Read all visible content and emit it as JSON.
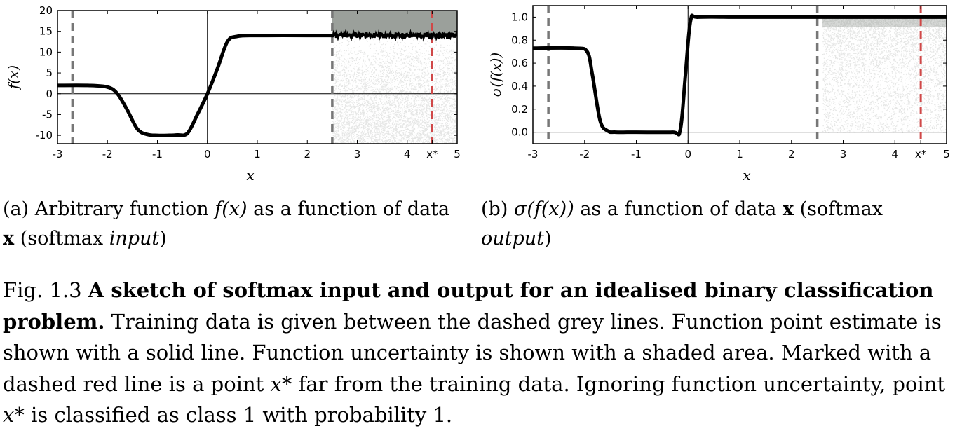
{
  "chart_data": [
    {
      "type": "line",
      "panel": "a",
      "xlabel": "x",
      "ylabel": "f(x)",
      "xlim": [
        -3,
        5
      ],
      "ylim": [
        -12,
        20
      ],
      "x_ticks": [
        "-3",
        "-2",
        "-1",
        "0",
        "1",
        "2",
        "3",
        "4",
        "x*",
        "5"
      ],
      "x_tick_values": [
        -3,
        -2,
        -1,
        0,
        1,
        2,
        3,
        4,
        4.5,
        5
      ],
      "y_ticks": [
        -10,
        -5,
        0,
        5,
        10,
        15,
        20
      ],
      "series": [
        {
          "x": [
            -3,
            -2.4,
            -2.0,
            -1.8,
            -1.6,
            -1.4,
            -1.2,
            -1.0,
            -0.8,
            -0.6,
            -0.4,
            -0.2,
            0,
            0.2,
            0.4,
            0.6,
            1.0,
            2.0,
            2.5
          ],
          "y": [
            2,
            2,
            1.6,
            0,
            -4,
            -8.5,
            -9.8,
            -10,
            -10,
            -9.9,
            -9.5,
            -5,
            0,
            6,
            12.5,
            13.8,
            14,
            14,
            14
          ]
        },
        {
          "x": [
            2.5,
            5.0
          ],
          "y": [
            14,
            14
          ]
        }
      ],
      "uncertainty_band": {
        "x": [
          2.5,
          5.0
        ],
        "y": [
          -12,
          20
        ]
      },
      "training_data_bounds": [
        -2.7,
        2.5
      ],
      "x_star": 4.5
    },
    {
      "type": "line",
      "panel": "b",
      "xlabel": "x",
      "ylabel": "σ(f(x))",
      "xlim": [
        -3,
        5
      ],
      "ylim": [
        -0.1,
        1.1
      ],
      "x_ticks": [
        "-3",
        "-2",
        "-1",
        "0",
        "1",
        "2",
        "3",
        "4",
        "x*",
        "5"
      ],
      "x_tick_values": [
        -3,
        -2,
        -1,
        0,
        1,
        2,
        3,
        4,
        4.5,
        5
      ],
      "y_ticks": [
        "0.0",
        "0.2",
        "0.4",
        "0.6",
        "0.8",
        "1.0"
      ],
      "y_tick_values": [
        0,
        0.2,
        0.4,
        0.6,
        0.8,
        1.0
      ],
      "series": [
        {
          "x": [
            -3,
            -2.2,
            -1.95,
            -1.85,
            -1.7,
            -1.55,
            -1.4,
            -1.0,
            -0.3,
            -0.15,
            -0.05,
            0.05,
            0.2,
            1.0,
            2.0,
            2.5,
            5.0
          ],
          "y": [
            0.73,
            0.73,
            0.7,
            0.5,
            0.1,
            0.01,
            0.0,
            0.0,
            0.0,
            0.02,
            0.5,
            0.97,
            1.0,
            1.0,
            1.0,
            1.0,
            1.0
          ]
        }
      ],
      "uncertainty_band": {
        "x": [
          2.6,
          5.0
        ],
        "y": [
          0.0,
          1.0
        ]
      },
      "training_data_bounds": [
        -2.7,
        2.5
      ],
      "x_star": 4.5
    }
  ],
  "captions": {
    "a": {
      "pre": "(a) Arbitrary function ",
      "fx": "f(x)",
      "mid": " as a function of data ",
      "x": "x",
      "post": " (softmax ",
      "em": "input",
      "end": ")"
    },
    "b": {
      "pre": "(b) ",
      "sigma": "σ(f(x))",
      "mid": " as a function of data ",
      "x": "x",
      "post": " (softmax ",
      "em": "output",
      "end": ")"
    },
    "figure": {
      "label": "Fig. 1.3 ",
      "bold": "A sketch of softmax input and output for an idealised binary classification problem.",
      "body1": " Training data is given between the dashed grey lines. Function point estimate is shown with a solid line. Function uncertainty is shown with a shaded area. Marked with a dashed red line is a point ",
      "xstar1": "x*",
      "body2": " far from the training data. Ignoring function uncertainty, point ",
      "xstar2": "x*",
      "body3": " is classified as class 1 with probability 1."
    }
  },
  "colors": {
    "line": "#000000",
    "shade": "#8a8f8a",
    "train_bound": "#777777",
    "x_star": "#d04848"
  }
}
